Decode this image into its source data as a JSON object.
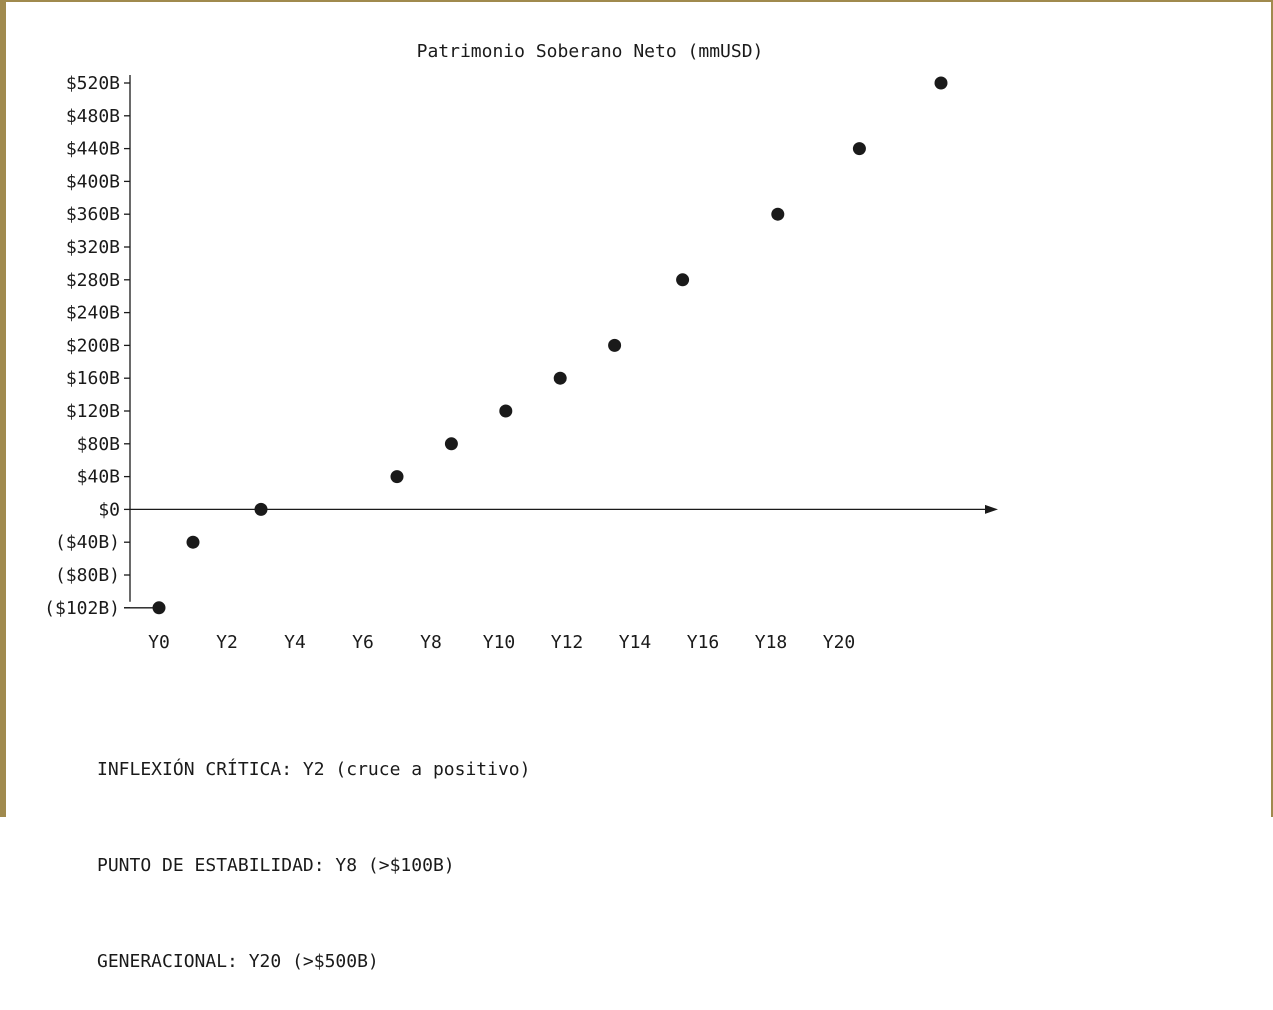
{
  "chart_data": {
    "type": "scatter",
    "title": "Patrimonio Soberano Neto (mmUSD)",
    "xlabel": "",
    "ylabel": "",
    "x_tick_labels": [
      "Y0",
      "Y2",
      "Y4",
      "Y6",
      "Y8",
      "Y10",
      "Y12",
      "Y14",
      "Y16",
      "Y18",
      "Y20"
    ],
    "y_tick_labels": [
      "$520B",
      "$480B",
      "$440B",
      "$400B",
      "$360B",
      "$320B",
      "$280B",
      "$240B",
      "$200B",
      "$160B",
      "$120B",
      "$80B",
      "$40B",
      "$0",
      "($40B)",
      "($80B)",
      "($102B)"
    ],
    "y_tick_values": [
      520,
      480,
      440,
      400,
      360,
      320,
      280,
      240,
      200,
      160,
      120,
      80,
      40,
      0,
      -40,
      -80,
      -102
    ],
    "grid": false,
    "legend": "none",
    "points": [
      {
        "x": 0,
        "y": -102
      },
      {
        "x": 1,
        "y": -40
      },
      {
        "x": 3,
        "y": 0
      },
      {
        "x": 7,
        "y": 40
      },
      {
        "x": 8.6,
        "y": 80
      },
      {
        "x": 10.2,
        "y": 120
      },
      {
        "x": 11.8,
        "y": 160
      },
      {
        "x": 13.4,
        "y": 200
      },
      {
        "x": 15.4,
        "y": 280
      },
      {
        "x": 18.2,
        "y": 360
      },
      {
        "x": 20.6,
        "y": 440
      },
      {
        "x": 23,
        "y": 520
      }
    ]
  },
  "annotations": [
    "INFLEXIÓN CRÍTICA: Y2 (cruce a positivo)",
    "PUNTO DE ESTABILIDAD: Y8 (>$100B)",
    "GENERACIONAL: Y20 (>$500B)"
  ],
  "colors": {
    "frame": "#a08a4e",
    "ink": "#1a1a1a"
  }
}
